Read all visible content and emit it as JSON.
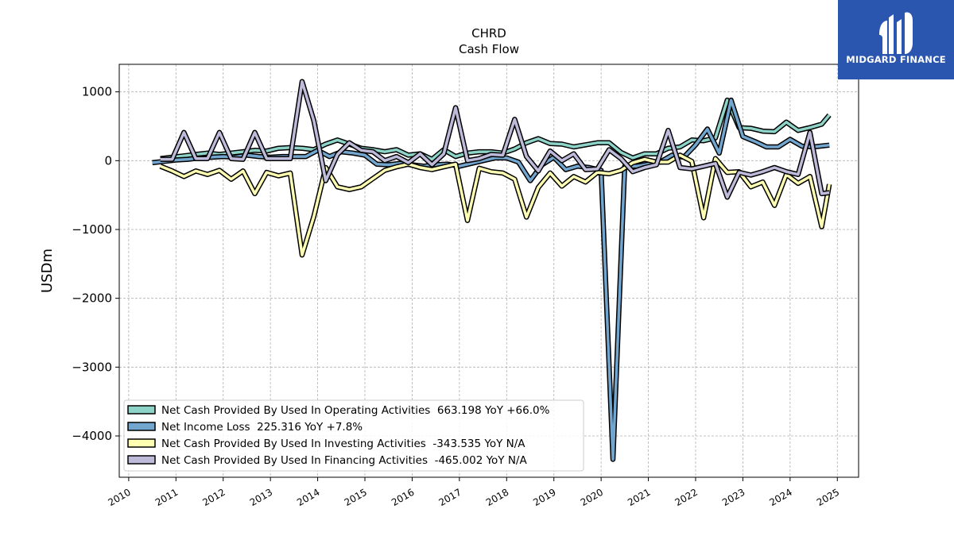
{
  "brand": {
    "name": "MIDGARD FINANCE",
    "bg_color": "#2b56b0"
  },
  "chart_data": {
    "type": "line",
    "title": "CHRD",
    "subtitle": "Cash Flow",
    "xlabel": "",
    "ylabel": "USDm",
    "xlim": [
      2009.8,
      2025.45
    ],
    "ylim": [
      -4600,
      1400
    ],
    "yticks": [
      1000,
      0,
      -1000,
      -2000,
      -3000,
      -4000
    ],
    "ytick_labels": [
      "1000",
      "0",
      "−1000",
      "−2000",
      "−3000",
      "−4000"
    ],
    "xticks": [
      "2010",
      "2011",
      "2012",
      "2013",
      "2014",
      "2015",
      "2016",
      "2017",
      "2018",
      "2019",
      "2020",
      "2021",
      "2022",
      "2023",
      "2024",
      "2025"
    ],
    "grid": true,
    "legend_position": "lower-left",
    "series": [
      {
        "name": "Net Cash Provided By Used In Operating Activities  663.198 YoY +66.0%",
        "color": "#8dd3c7",
        "x": [
          2010.67,
          2010.92,
          2011.17,
          2011.42,
          2011.67,
          2011.92,
          2012.17,
          2012.42,
          2012.67,
          2012.92,
          2013.17,
          2013.42,
          2013.67,
          2013.92,
          2014.17,
          2014.42,
          2014.67,
          2014.92,
          2015.17,
          2015.42,
          2015.67,
          2015.92,
          2016.17,
          2016.42,
          2016.67,
          2016.92,
          2017.17,
          2017.42,
          2017.67,
          2017.92,
          2018.17,
          2018.42,
          2018.67,
          2018.92,
          2019.17,
          2019.42,
          2019.67,
          2019.92,
          2020.17,
          2020.42,
          2020.67,
          2020.92,
          2021.17,
          2021.42,
          2021.67,
          2021.92,
          2022.17,
          2022.42,
          2022.67,
          2022.92,
          2023.17,
          2023.42,
          2023.67,
          2023.92,
          2024.17,
          2024.42,
          2024.67,
          2024.83
        ],
        "values": [
          30,
          50,
          70,
          90,
          110,
          90,
          110,
          130,
          150,
          140,
          180,
          190,
          180,
          160,
          240,
          300,
          240,
          180,
          160,
          130,
          160,
          80,
          100,
          20,
          160,
          60,
          110,
          130,
          130,
          110,
          170,
          260,
          320,
          250,
          240,
          200,
          230,
          260,
          260,
          120,
          40,
          100,
          100,
          180,
          200,
          300,
          290,
          330,
          880,
          480,
          470,
          430,
          420,
          560,
          440,
          480,
          530,
          663
        ]
      },
      {
        "name": "Net Income Loss  225.316 YoY +7.8%",
        "color": "#72a6ce",
        "x": [
          2010.5,
          2010.75,
          2011.0,
          2011.25,
          2011.5,
          2011.75,
          2012.0,
          2012.25,
          2012.5,
          2012.75,
          2013.0,
          2013.25,
          2013.5,
          2013.75,
          2014.0,
          2014.25,
          2014.5,
          2014.75,
          2015.0,
          2015.25,
          2015.5,
          2015.75,
          2016.0,
          2016.25,
          2016.5,
          2016.75,
          2017.0,
          2017.25,
          2017.5,
          2017.75,
          2018.0,
          2018.25,
          2018.5,
          2018.75,
          2019.0,
          2019.25,
          2019.5,
          2019.75,
          2020.0,
          2020.25,
          2020.5,
          2020.75,
          2021.0,
          2021.25,
          2021.5,
          2021.75,
          2022.0,
          2022.25,
          2022.5,
          2022.75,
          2023.0,
          2023.25,
          2023.5,
          2023.75,
          2024.0,
          2024.25,
          2024.5,
          2024.75,
          2024.83
        ],
        "values": [
          -30,
          -10,
          10,
          20,
          40,
          50,
          60,
          50,
          80,
          60,
          50,
          60,
          60,
          60,
          150,
          60,
          130,
          110,
          80,
          -50,
          -60,
          -40,
          -60,
          -80,
          -60,
          -50,
          -80,
          -40,
          0,
          40,
          40,
          -20,
          -290,
          -60,
          50,
          -130,
          -80,
          -100,
          -140,
          -4340,
          -80,
          -80,
          -50,
          -20,
          80,
          50,
          230,
          460,
          110,
          880,
          350,
          280,
          200,
          200,
          310,
          210,
          200,
          220,
          225
        ]
      },
      {
        "name": "Net Cash Provided By Used In Investing Activities  -343.535 YoY N/A",
        "color": "#ffffb3",
        "x": [
          2010.67,
          2010.92,
          2011.17,
          2011.42,
          2011.67,
          2011.92,
          2012.17,
          2012.42,
          2012.67,
          2012.92,
          2013.17,
          2013.42,
          2013.67,
          2013.92,
          2014.17,
          2014.42,
          2014.67,
          2014.92,
          2015.17,
          2015.42,
          2015.67,
          2015.92,
          2016.17,
          2016.42,
          2016.67,
          2016.92,
          2017.17,
          2017.42,
          2017.67,
          2017.92,
          2018.17,
          2018.42,
          2018.67,
          2018.92,
          2019.17,
          2019.42,
          2019.67,
          2019.92,
          2020.17,
          2020.42,
          2020.67,
          2020.92,
          2021.17,
          2021.42,
          2021.67,
          2021.92,
          2022.17,
          2022.42,
          2022.67,
          2022.92,
          2023.17,
          2023.42,
          2023.67,
          2023.92,
          2024.17,
          2024.42,
          2024.67,
          2024.83
        ],
        "values": [
          -80,
          -150,
          -230,
          -150,
          -200,
          -140,
          -270,
          -150,
          -480,
          -170,
          -220,
          -180,
          -1370,
          -810,
          -100,
          -380,
          -420,
          -380,
          -260,
          -140,
          -90,
          -50,
          -100,
          -130,
          -90,
          -50,
          -870,
          -110,
          -160,
          -180,
          -270,
          -820,
          -390,
          -180,
          -370,
          -230,
          -310,
          -170,
          -190,
          -140,
          -30,
          20,
          -20,
          -20,
          80,
          -10,
          -830,
          30,
          -170,
          -160,
          -380,
          -310,
          -650,
          -200,
          -330,
          -230,
          -960,
          -343
        ]
      },
      {
        "name": "Net Cash Provided By Used In Financing Activities  -465.002 YoY N/A",
        "color": "#bebada",
        "x": [
          2010.67,
          2010.92,
          2011.17,
          2011.42,
          2011.67,
          2011.92,
          2012.17,
          2012.42,
          2012.67,
          2012.92,
          2013.17,
          2013.42,
          2013.67,
          2013.92,
          2014.17,
          2014.42,
          2014.67,
          2014.92,
          2015.17,
          2015.42,
          2015.67,
          2015.92,
          2016.17,
          2016.42,
          2016.67,
          2016.92,
          2017.17,
          2017.42,
          2017.67,
          2017.92,
          2018.17,
          2018.42,
          2018.67,
          2018.92,
          2019.17,
          2019.42,
          2019.67,
          2019.92,
          2020.17,
          2020.42,
          2020.67,
          2020.92,
          2021.17,
          2021.42,
          2021.67,
          2021.92,
          2022.17,
          2022.42,
          2022.67,
          2022.92,
          2023.17,
          2023.42,
          2023.67,
          2023.92,
          2024.17,
          2024.42,
          2024.67,
          2024.83
        ],
        "values": [
          20,
          20,
          410,
          30,
          30,
          410,
          30,
          20,
          410,
          30,
          30,
          30,
          1150,
          580,
          -290,
          90,
          260,
          150,
          130,
          0,
          60,
          -30,
          100,
          -60,
          100,
          770,
          0,
          30,
          90,
          80,
          600,
          60,
          -150,
          140,
          0,
          100,
          -130,
          -120,
          160,
          30,
          -160,
          -100,
          -60,
          440,
          -100,
          -120,
          -80,
          -40,
          -530,
          -170,
          -210,
          -160,
          -100,
          -160,
          -200,
          410,
          -480,
          -465
        ]
      }
    ]
  }
}
